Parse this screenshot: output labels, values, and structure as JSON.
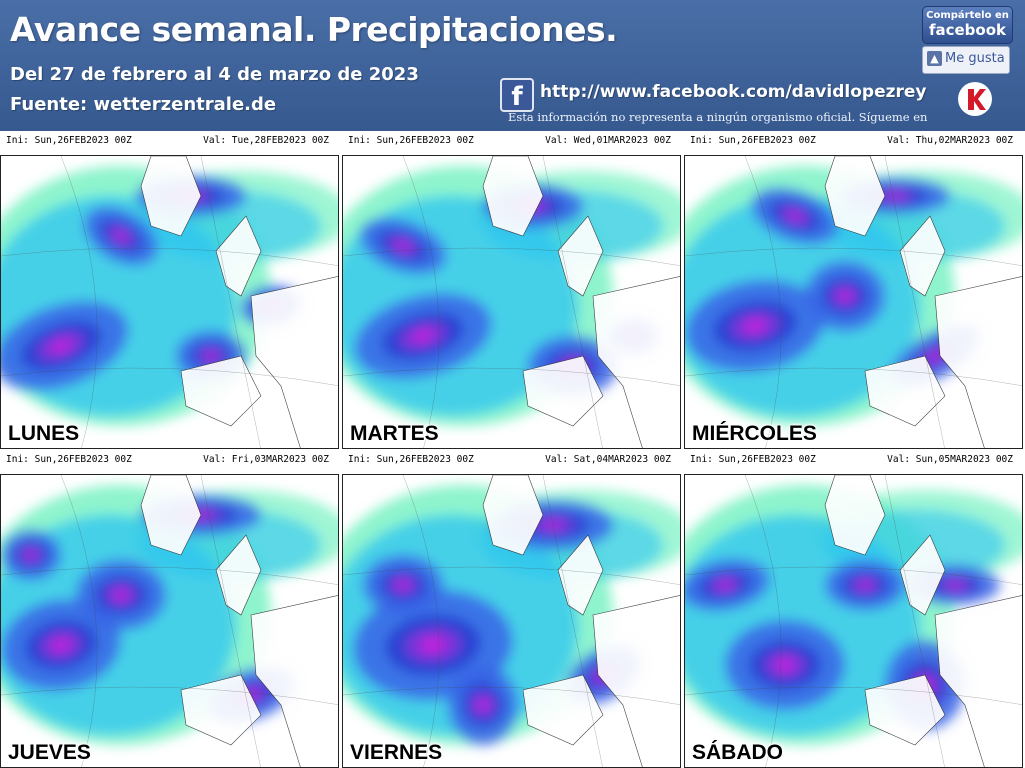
{
  "header": {
    "title": "Avance semanal. Precipitaciones.",
    "subtitle": "Del 27 de febrero al 4 de marzo de 2023",
    "source": "Fuente: wetterzentrale.de",
    "facebook_url": "http://www.facebook.com/davidlopezrey",
    "disclaimer": "Esta información no representa a ningún organismo oficial. Sígueme en",
    "share_line1": "Compártelo en",
    "share_line2": "facebook",
    "like_label": "Me gusta",
    "fb_icon": "f"
  },
  "colors": {
    "header_bg": "#3e6299",
    "light_green": "#5ef0b8",
    "cyan": "#2ec4f2",
    "blue": "#3a64e6",
    "dark_blue": "#2a3ad0",
    "purple": "#8a2ed8",
    "magenta": "#d61ae0",
    "land": "#ffffff"
  },
  "panels": [
    {
      "ini": "Ini: Sun,26FEB2023 00Z",
      "val": "Val: Tue,28FEB2023 00Z",
      "day": "LUNES"
    },
    {
      "ini": "Ini: Sun,26FEB2023 00Z",
      "val": "Val: Wed,01MAR2023 00Z",
      "day": "MARTES"
    },
    {
      "ini": "Ini: Sun,26FEB2023 00Z",
      "val": "Val: Thu,02MAR2023 00Z",
      "day": "MIÉRCOLES"
    },
    {
      "ini": "Ini: Sun,26FEB2023 00Z",
      "val": "Val: Fri,03MAR2023 00Z",
      "day": "JUEVES"
    },
    {
      "ini": "Ini: Sun,26FEB2023 00Z",
      "val": "Val: Sat,04MAR2023 00Z",
      "day": "VIERNES"
    },
    {
      "ini": "Ini: Sun,26FEB2023 00Z",
      "val": "Val: Sun,05MAR2023 00Z",
      "day": "SÁBADO"
    }
  ]
}
